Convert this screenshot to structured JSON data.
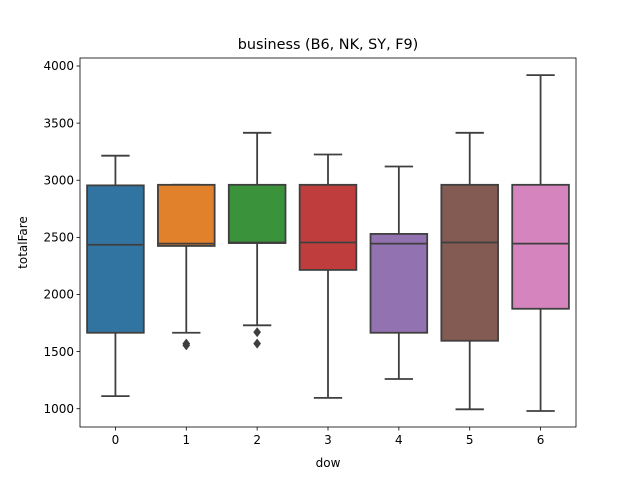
{
  "chart_data": {
    "type": "box",
    "title": "business (B6, NK, SY, F9)",
    "xlabel": "dow",
    "ylabel": "totalFare",
    "categories": [
      "0",
      "1",
      "2",
      "3",
      "4",
      "5",
      "6"
    ],
    "ylim": [
      840,
      4070
    ],
    "yticks": [
      1000,
      1500,
      2000,
      2500,
      3000,
      3500,
      4000
    ],
    "grid": false,
    "series": [
      {
        "category": "0",
        "whisker_low": 1110,
        "q1": 1665,
        "median": 2435,
        "q3": 2955,
        "whisker_high": 3215,
        "outliers": [],
        "color": "#3274a1"
      },
      {
        "category": "1",
        "whisker_low": 1665,
        "q1": 2425,
        "median": 2445,
        "q3": 2960,
        "whisker_high": 2960,
        "outliers": [
          1555,
          1570
        ],
        "color": "#e1812c"
      },
      {
        "category": "2",
        "whisker_low": 1730,
        "q1": 2450,
        "median": 2455,
        "q3": 2960,
        "whisker_high": 3415,
        "outliers": [
          1570,
          1670
        ],
        "color": "#3a923a"
      },
      {
        "category": "3",
        "whisker_low": 1095,
        "q1": 2215,
        "median": 2455,
        "q3": 2960,
        "whisker_high": 3225,
        "outliers": [],
        "color": "#c03d3e"
      },
      {
        "category": "4",
        "whisker_low": 1260,
        "q1": 1665,
        "median": 2445,
        "q3": 2530,
        "whisker_high": 3120,
        "outliers": [],
        "color": "#9372b2"
      },
      {
        "category": "5",
        "whisker_low": 995,
        "q1": 1595,
        "median": 2455,
        "q3": 2960,
        "whisker_high": 3415,
        "outliers": [],
        "color": "#845b53"
      },
      {
        "category": "6",
        "whisker_low": 980,
        "q1": 1875,
        "median": 2445,
        "q3": 2960,
        "whisker_high": 3920,
        "outliers": [],
        "color": "#d684bd"
      }
    ]
  }
}
